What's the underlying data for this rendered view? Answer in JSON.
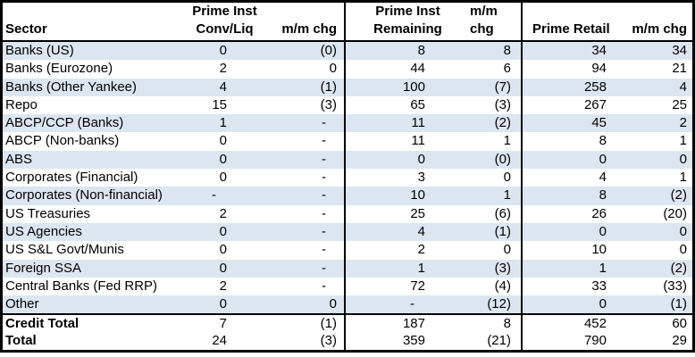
{
  "colors": {
    "stripe": "#DCE6F1",
    "border": "#000000",
    "background": "#FFFFFF"
  },
  "chart_data": {
    "type": "table",
    "headers": [
      "Sector",
      "Prime Inst\nConv/Liq",
      "m/m chg",
      "Prime Inst\nRemaining",
      "m/m chg",
      "Prime Retail",
      "m/m chg"
    ],
    "rows": [
      [
        "Banks (US)",
        "0",
        "(0)",
        "8",
        "8",
        "34",
        "34"
      ],
      [
        "Banks (Eurozone)",
        "2",
        "0",
        "44",
        "6",
        "94",
        "21"
      ],
      [
        "Banks (Other Yankee)",
        "4",
        "(1)",
        "100",
        "(7)",
        "258",
        "4"
      ],
      [
        "Repo",
        "15",
        "(3)",
        "65",
        "(3)",
        "267",
        "25"
      ],
      [
        "ABCP/CCP (Banks)",
        "1",
        "-",
        "11",
        "(2)",
        "45",
        "2"
      ],
      [
        "ABCP (Non-banks)",
        "0",
        "-",
        "11",
        "1",
        "8",
        "1"
      ],
      [
        "ABS",
        "0",
        "-",
        "0",
        "(0)",
        "0",
        "0"
      ],
      [
        "Corporates (Financial)",
        "0",
        "-",
        "3",
        "0",
        "4",
        "1"
      ],
      [
        "Corporates (Non-financial)",
        "-",
        "-",
        "10",
        "1",
        "8",
        "(2)"
      ],
      [
        "US Treasuries",
        "2",
        "-",
        "25",
        "(6)",
        "26",
        "(20)"
      ],
      [
        "US Agencies",
        "0",
        "-",
        "4",
        "(1)",
        "0",
        "0"
      ],
      [
        "US S&L Govt/Munis",
        "0",
        "-",
        "2",
        "0",
        "10",
        "0"
      ],
      [
        "Foreign SSA",
        "0",
        "-",
        "1",
        "(3)",
        "1",
        "(2)"
      ],
      [
        "Central Banks (Fed RRP)",
        "2",
        "-",
        "72",
        "(4)",
        "33",
        "(33)"
      ],
      [
        "Other",
        "0",
        "0",
        "-",
        "(12)",
        "0",
        "(1)"
      ]
    ],
    "footer_rows": [
      [
        "Credit Total",
        "7",
        "(1)",
        "187",
        "8",
        "452",
        "60"
      ],
      [
        "Total",
        "24",
        "(3)",
        "359",
        "(21)",
        "790",
        "29"
      ]
    ]
  }
}
